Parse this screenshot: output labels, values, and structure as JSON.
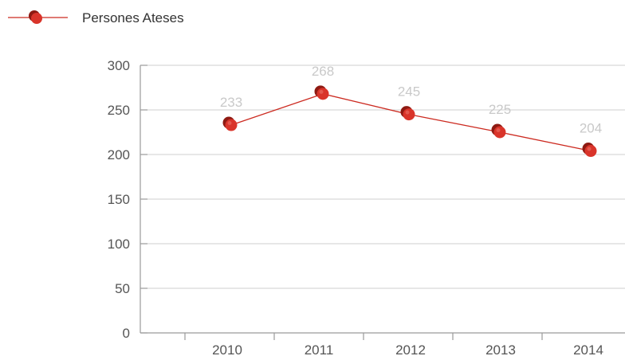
{
  "chart_data": {
    "type": "line",
    "title": "",
    "xlabel": "",
    "ylabel": "",
    "categories": [
      "2010",
      "2011",
      "2012",
      "2013",
      "2014"
    ],
    "series": [
      {
        "name": "Persones Ateses",
        "values": [
          233,
          268,
          245,
          225,
          204
        ],
        "color": "#cc2a20"
      }
    ],
    "ylim": [
      0,
      300
    ],
    "yticks": [
      "0",
      "50",
      "100",
      "150",
      "200",
      "250",
      "300"
    ],
    "data_labels": [
      "233",
      "268",
      "245",
      "225",
      "204"
    ],
    "grid": true,
    "legend_position": "top-left",
    "colors": {
      "series": "#cc2a20",
      "marker_dark": "#8e1a12",
      "grid": "#cfcfcf",
      "axis": "#9a9a9a",
      "data_label": "#c9c9c9"
    }
  }
}
